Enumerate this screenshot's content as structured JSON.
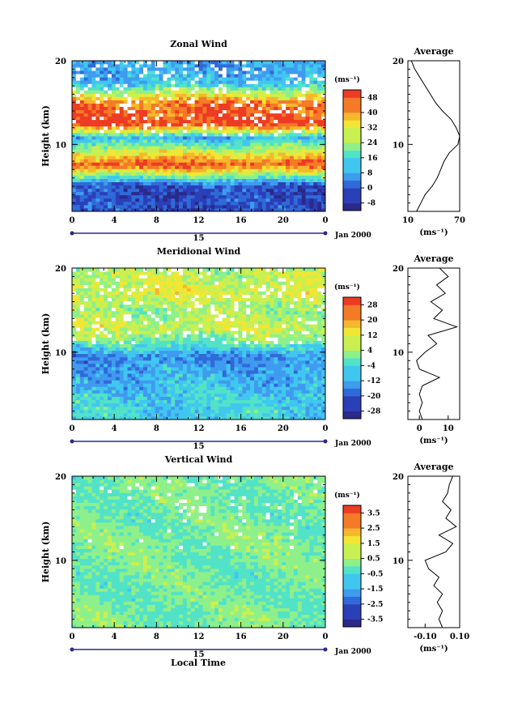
{
  "figure": {
    "xlabel": "Local Time",
    "ylabel": "Height (km)",
    "day_label": "15",
    "date_label": "Jan 2000",
    "unit_label": "(ms⁻¹)",
    "avg_title": "Average"
  },
  "chart_data": [
    {
      "type": "heatmap",
      "title": "Zonal Wind",
      "xlabel": "Local Time",
      "ylabel": "Height (km)",
      "x_ticks": [
        "0",
        "4",
        "8",
        "12",
        "16",
        "20",
        "0"
      ],
      "y_ticks": [
        "10",
        "20"
      ],
      "xlim": [
        0,
        24
      ],
      "ylim": [
        2,
        20
      ],
      "colorbar": {
        "unit": "(ms⁻¹)",
        "ticks": [
          "48",
          "40",
          "32",
          "24",
          "16",
          "8",
          "0",
          "-8"
        ],
        "min": -12,
        "max": 52
      },
      "profile_bands": [
        {
          "height": 5,
          "value": -2
        },
        {
          "height": 7.6,
          "value": 48
        },
        {
          "height": 10.8,
          "value": 10
        },
        {
          "height": 12.5,
          "value": 50
        },
        {
          "height": 15,
          "value": 44
        },
        {
          "height": 17.3,
          "value": 12
        },
        {
          "height": 19,
          "value": 8
        }
      ],
      "average_profile": {
        "xlim": [
          10,
          70
        ],
        "x_ticks": [
          "10",
          "70"
        ],
        "y_ticks": [
          "10",
          "20"
        ],
        "xlabel": "(ms⁻¹)",
        "points": [
          [
            20,
            2
          ],
          [
            25,
            3
          ],
          [
            30,
            4
          ],
          [
            38,
            5
          ],
          [
            44,
            6
          ],
          [
            48,
            7
          ],
          [
            52,
            8
          ],
          [
            58,
            9
          ],
          [
            68,
            10
          ],
          [
            70,
            11
          ],
          [
            66,
            12
          ],
          [
            60,
            13
          ],
          [
            50,
            14
          ],
          [
            42,
            15
          ],
          [
            36,
            16
          ],
          [
            30,
            17
          ],
          [
            24,
            18
          ],
          [
            18,
            19
          ],
          [
            14,
            20
          ]
        ]
      }
    },
    {
      "type": "heatmap",
      "title": "Meridional Wind",
      "xlabel": "Local Time",
      "ylabel": "Height (km)",
      "x_ticks": [
        "0",
        "4",
        "8",
        "12",
        "16",
        "20",
        "0"
      ],
      "y_ticks": [
        "10",
        "20"
      ],
      "xlim": [
        0,
        24
      ],
      "ylim": [
        2,
        20
      ],
      "colorbar": {
        "unit": "(ms⁻¹)",
        "ticks": [
          "28",
          "20",
          "12",
          "4",
          "-4",
          "-12",
          "-20",
          "-28"
        ],
        "min": -30,
        "max": 30
      },
      "profile_bands": [
        {
          "height": 4,
          "value": -6
        },
        {
          "height": 7,
          "value": -10
        },
        {
          "height": 9.5,
          "value": -14
        },
        {
          "height": 11.5,
          "value": 2
        },
        {
          "height": 13,
          "value": 8
        },
        {
          "height": 15,
          "value": 4
        },
        {
          "height": 17,
          "value": 10
        },
        {
          "height": 19,
          "value": 6
        }
      ],
      "average_profile": {
        "xlim": [
          -4,
          14
        ],
        "x_ticks": [
          "0",
          "10"
        ],
        "y_ticks": [
          "10",
          "20"
        ],
        "xlabel": "(ms⁻¹)",
        "points": [
          [
            1,
            2
          ],
          [
            0,
            3
          ],
          [
            1,
            4
          ],
          [
            0,
            5
          ],
          [
            1,
            6
          ],
          [
            7,
            7
          ],
          [
            0,
            8
          ],
          [
            -1,
            9
          ],
          [
            2,
            10
          ],
          [
            6,
            11
          ],
          [
            3,
            12
          ],
          [
            13,
            13
          ],
          [
            5,
            14
          ],
          [
            8,
            15
          ],
          [
            4,
            16
          ],
          [
            9,
            17
          ],
          [
            6,
            18
          ],
          [
            10,
            19
          ],
          [
            7,
            20
          ]
        ]
      }
    },
    {
      "type": "heatmap",
      "title": "Vertical Wind",
      "xlabel": "Local Time",
      "ylabel": "Height (km)",
      "x_ticks": [
        "0",
        "4",
        "8",
        "12",
        "16",
        "20",
        "0"
      ],
      "y_ticks": [
        "10",
        "20"
      ],
      "xlim": [
        0,
        24
      ],
      "ylim": [
        2,
        20
      ],
      "colorbar": {
        "unit": "(ms⁻¹)",
        "ticks": [
          "3.5",
          "2.5",
          "1.5",
          "0.5",
          "-0.5",
          "-1.5",
          "-2.5",
          "-3.5"
        ],
        "min": -4,
        "max": 4
      },
      "profile_bands": [
        {
          "height": 4,
          "value": 0.1
        },
        {
          "height": 8,
          "value": 0.0
        },
        {
          "height": 12,
          "value": 0.2
        },
        {
          "height": 16,
          "value": 0.0
        },
        {
          "height": 19,
          "value": 0.1
        }
      ],
      "average_profile": {
        "xlim": [
          -0.2,
          0.1
        ],
        "x_ticks": [
          "-0.10",
          "0.10"
        ],
        "y_ticks": [
          "10",
          "20"
        ],
        "xlabel": "(ms⁻¹)",
        "points": [
          [
            0.0,
            2
          ],
          [
            -0.02,
            3
          ],
          [
            0.0,
            4
          ],
          [
            -0.03,
            5
          ],
          [
            0.0,
            6
          ],
          [
            -0.05,
            7
          ],
          [
            -0.02,
            8
          ],
          [
            -0.08,
            9
          ],
          [
            -0.1,
            10
          ],
          [
            0.02,
            11
          ],
          [
            0.06,
            12
          ],
          [
            -0.02,
            13
          ],
          [
            0.08,
            14
          ],
          [
            0.02,
            15
          ],
          [
            0.05,
            16
          ],
          [
            0.0,
            17
          ],
          [
            0.03,
            18
          ],
          [
            0.04,
            19
          ],
          [
            0.06,
            20
          ]
        ]
      }
    }
  ]
}
